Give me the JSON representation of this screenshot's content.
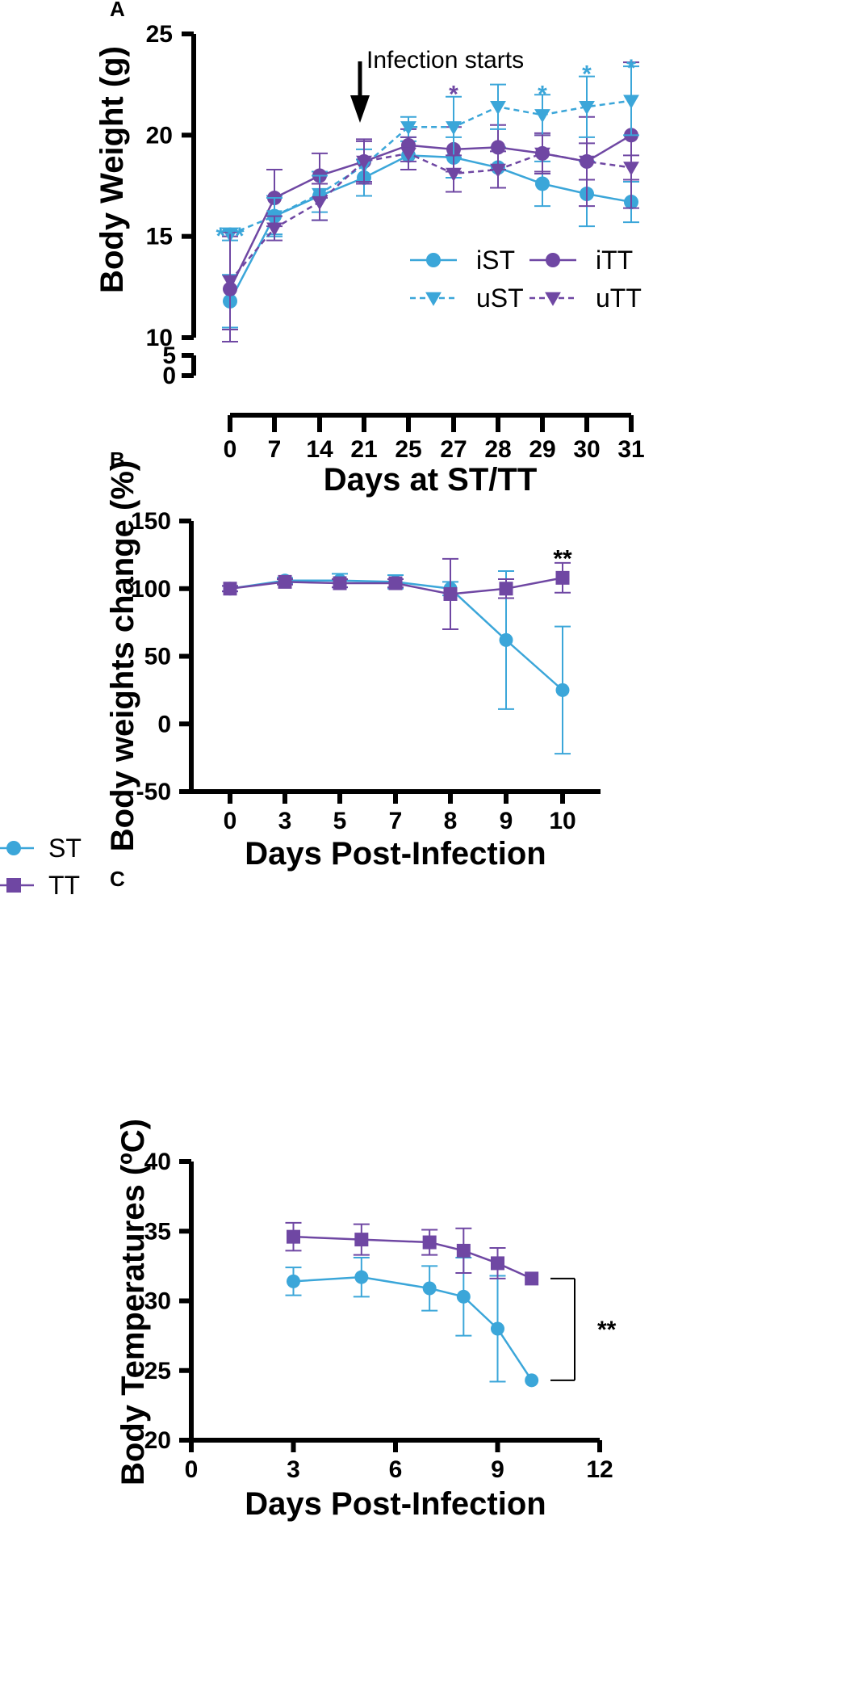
{
  "colors": {
    "ST": "#3ba6d9",
    "TT": "#6f47a3",
    "axis": "#000000"
  },
  "chart_data": [
    {
      "id": "A",
      "panel_label": "A",
      "type": "line",
      "title": "",
      "xlabel": "Days at ST/TT",
      "ylabel": "Body Weight (g)",
      "categories": [
        "0",
        "7",
        "14",
        "21",
        "25",
        "27",
        "28",
        "29",
        "30",
        "31"
      ],
      "yticks_upper": [
        "10",
        "15",
        "20",
        "25"
      ],
      "yticks_lower": [
        "0",
        "5"
      ],
      "ylim": [
        10,
        25
      ],
      "y_break": "5-10",
      "series": [
        {
          "name": "iST",
          "marker": "circle",
          "color": "#3ba6d9",
          "dashed": false,
          "values": [
            11.8,
            16.0,
            17.0,
            17.9,
            19.0,
            18.9,
            18.4,
            17.6,
            17.1,
            16.7
          ],
          "errors": [
            1.3,
            1.0,
            1.2,
            0.9,
            0.7,
            1.0,
            1.0,
            1.1,
            1.6,
            1.0
          ]
        },
        {
          "name": "iTT",
          "marker": "circle",
          "color": "#6f47a3",
          "dashed": false,
          "values": [
            12.4,
            16.9,
            18.0,
            18.7,
            19.5,
            19.3,
            19.4,
            19.1,
            18.7,
            20.0
          ],
          "errors": [
            2.6,
            1.4,
            1.1,
            1.1,
            0.8,
            1.1,
            1.1,
            1.0,
            2.2,
            3.6
          ]
        },
        {
          "name": "uST",
          "marker": "triangle-down",
          "color": "#3ba6d9",
          "dashed": true,
          "values": [
            15.1,
            16.0,
            17.1,
            18.5,
            20.4,
            20.4,
            21.4,
            21.0,
            21.4,
            21.7
          ],
          "errors": [
            0.3,
            0.9,
            0.9,
            0.8,
            0.5,
            1.5,
            1.1,
            1.0,
            1.5,
            1.7
          ]
        },
        {
          "name": "uTT",
          "marker": "triangle-down",
          "color": "#6f47a3",
          "dashed": true,
          "values": [
            12.8,
            15.4,
            16.7,
            18.7,
            19.1,
            18.1,
            18.3,
            19.1,
            18.7,
            18.4
          ],
          "errors": [
            2.4,
            0.6,
            0.9,
            1.0,
            0.8,
            0.9,
            0.9,
            0.9,
            0.9,
            0.6
          ]
        }
      ],
      "annotations": [
        {
          "text": "Infection starts",
          "at_category": "21",
          "type": "arrow"
        }
      ],
      "significance": [
        {
          "text": "***",
          "category": "0",
          "y": 15.5,
          "color": "#3ba6d9"
        },
        {
          "text": "*",
          "category": "27",
          "y": 22.5,
          "color": "#6f47a3"
        },
        {
          "text": "*",
          "category": "29",
          "y": 22.5,
          "color": "#3ba6d9"
        },
        {
          "text": "*",
          "category": "30",
          "y": 23.5,
          "color": "#3ba6d9"
        },
        {
          "text": "*",
          "category": "31",
          "y": 23.8,
          "color": "#3ba6d9"
        }
      ],
      "legend": [
        "iST",
        "iTT",
        "uST",
        "uTT"
      ],
      "legend_position": "bottom-right"
    },
    {
      "id": "B",
      "panel_label": "B",
      "type": "line",
      "title": "",
      "xlabel": "Days Post-Infection",
      "ylabel": "Body weights change (%)",
      "categories": [
        "0",
        "3",
        "5",
        "7",
        "8",
        "9",
        "10"
      ],
      "yticks": [
        "-50",
        "0",
        "50",
        "100",
        "150"
      ],
      "ylim": [
        -50,
        150
      ],
      "series": [
        {
          "name": "ST",
          "marker": "circle",
          "color": "#3ba6d9",
          "values": [
            100,
            106,
            106,
            105,
            100,
            62,
            25
          ],
          "errors": [
            2,
            2,
            5,
            5,
            5,
            51,
            47
          ]
        },
        {
          "name": "TT",
          "marker": "square",
          "color": "#6f47a3",
          "values": [
            100,
            105,
            104,
            104,
            96,
            100,
            108
          ],
          "errors": [
            2,
            2,
            3,
            3,
            26,
            7,
            11
          ]
        }
      ],
      "significance": [
        {
          "text": "**",
          "category": "10",
          "y": 127,
          "color": "#000000"
        }
      ]
    },
    {
      "id": "C",
      "panel_label": "C",
      "type": "line",
      "title": "",
      "xlabel": "Days Post-Infection",
      "ylabel": "Body Temperatures (ºC)",
      "x": [
        3,
        5,
        7,
        8,
        9,
        10
      ],
      "xticks": [
        "0",
        "3",
        "6",
        "9",
        "12"
      ],
      "xlim": [
        0,
        12
      ],
      "yticks": [
        "20",
        "25",
        "30",
        "35",
        "40"
      ],
      "ylim": [
        20,
        40
      ],
      "series": [
        {
          "name": "ST",
          "marker": "circle",
          "color": "#3ba6d9",
          "values": [
            31.4,
            31.7,
            30.9,
            30.3,
            28.0,
            24.3
          ],
          "errors": [
            1.0,
            1.4,
            1.6,
            2.8,
            3.8,
            0
          ]
        },
        {
          "name": "TT",
          "marker": "square",
          "color": "#6f47a3",
          "values": [
            34.6,
            34.4,
            34.2,
            33.6,
            32.7,
            31.6
          ],
          "errors": [
            1.0,
            1.1,
            0.9,
            1.6,
            1.1,
            0
          ]
        }
      ],
      "significance": [
        {
          "text": "**",
          "between": [
            "ST",
            "TT"
          ],
          "at_x": 10
        }
      ]
    }
  ],
  "shared_legend": [
    {
      "name": "ST",
      "marker": "circle",
      "color": "#3ba6d9"
    },
    {
      "name": "TT",
      "marker": "square",
      "color": "#6f47a3"
    }
  ]
}
